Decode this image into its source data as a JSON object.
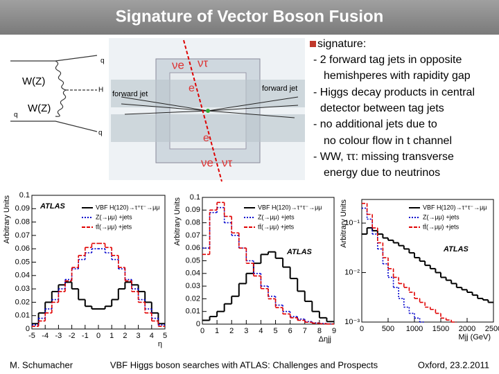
{
  "header": {
    "title": "Signature of Vector Boson Fusion"
  },
  "diagram": {
    "labels": [
      "q",
      "W(Z)",
      "H",
      "W(Z)",
      "q",
      "q"
    ]
  },
  "detector": {
    "labels": [
      "νe",
      "ντ",
      "e",
      "forward jet",
      "forward jet",
      "e",
      "νe",
      "ντ"
    ]
  },
  "text": {
    "heading": "signature:",
    "lines": [
      "- 2 forward tag jets in opposite",
      "hemishperes with rapidity gap",
      "- Higgs decay products in central",
      "detector between tag jets",
      "-  no additional jets due to",
      "no colour flow in t channel",
      "- WW, ττ: missing transverse",
      "energy due to neutrinos"
    ]
  },
  "chart_data": [
    {
      "type": "histogram",
      "annotation": "ATLAS",
      "x_label": "η",
      "y_label": "Arbitrary Units",
      "bins": [
        -5,
        -4.5,
        -4,
        -3.5,
        -3,
        -2.5,
        -2,
        -1.5,
        -1,
        -0.5,
        0,
        0.5,
        1,
        1.5,
        2,
        2.5,
        3,
        3.5,
        4,
        4.5,
        5
      ],
      "xlim": [
        -5,
        5
      ],
      "xticks": [
        -5,
        -4,
        -3,
        -2,
        -1,
        0,
        1,
        2,
        3,
        4,
        5
      ],
      "ylim": [
        0,
        0.1
      ],
      "yticks": [
        0,
        0.01,
        0.02,
        0.03,
        0.04,
        0.05,
        0.06,
        0.07,
        0.08,
        0.09,
        0.1
      ],
      "series": [
        {
          "name": "VBF H(120)→τ⁺τ⁻→μμ",
          "color": "#000000",
          "style": "solid",
          "values": [
            0.004,
            0.012,
            0.02,
            0.028,
            0.033,
            0.035,
            0.03,
            0.022,
            0.017,
            0.015,
            0.015,
            0.017,
            0.022,
            0.03,
            0.035,
            0.033,
            0.028,
            0.02,
            0.012,
            0.004
          ]
        },
        {
          "name": "Z(→μμ) +jets",
          "color": "#0000cc",
          "style": "dotted",
          "values": [
            0.003,
            0.008,
            0.015,
            0.022,
            0.03,
            0.037,
            0.045,
            0.052,
            0.057,
            0.06,
            0.06,
            0.057,
            0.052,
            0.045,
            0.037,
            0.03,
            0.022,
            0.015,
            0.008,
            0.003
          ]
        },
        {
          "name": "tt̄(→μμ) +jets",
          "color": "#e00000",
          "style": "dashed",
          "values": [
            0.002,
            0.006,
            0.012,
            0.02,
            0.028,
            0.036,
            0.046,
            0.055,
            0.061,
            0.064,
            0.064,
            0.061,
            0.055,
            0.046,
            0.036,
            0.028,
            0.02,
            0.012,
            0.006,
            0.002
          ]
        }
      ]
    },
    {
      "type": "histogram",
      "annotation": "ATLAS",
      "x_label": "Δηjj",
      "y_label": "Arbitrary Units",
      "bins": [
        0,
        0.5,
        1,
        1.5,
        2,
        2.5,
        3,
        3.5,
        4,
        4.5,
        5,
        5.5,
        6,
        6.5,
        7,
        7.5,
        8,
        8.5,
        9
      ],
      "xlim": [
        0,
        9
      ],
      "xticks": [
        0,
        1,
        2,
        3,
        4,
        5,
        6,
        7,
        8,
        9
      ],
      "ylim": [
        0,
        0.1
      ],
      "yticks": [
        0,
        0.01,
        0.02,
        0.03,
        0.04,
        0.05,
        0.06,
        0.07,
        0.08,
        0.09,
        0.1
      ],
      "series": [
        {
          "name": "VBF H(120)→τ⁺τ⁻→μμ",
          "color": "#000000",
          "style": "solid",
          "values": [
            0.003,
            0.006,
            0.01,
            0.016,
            0.022,
            0.032,
            0.04,
            0.048,
            0.055,
            0.057,
            0.052,
            0.045,
            0.036,
            0.026,
            0.018,
            0.01,
            0.005,
            0.002
          ]
        },
        {
          "name": "Z(→μμ) +jets",
          "color": "#0000cc",
          "style": "dotted",
          "values": [
            0.06,
            0.088,
            0.092,
            0.08,
            0.07,
            0.06,
            0.05,
            0.04,
            0.03,
            0.022,
            0.015,
            0.01,
            0.006,
            0.004,
            0.002,
            0.001,
            0.0005,
            0.0002
          ]
        },
        {
          "name": "tt̄(→μμ) +jets",
          "color": "#e00000",
          "style": "dashed",
          "values": [
            0.055,
            0.09,
            0.096,
            0.085,
            0.072,
            0.06,
            0.048,
            0.038,
            0.028,
            0.02,
            0.013,
            0.008,
            0.005,
            0.003,
            0.0015,
            0.0008,
            0.0003,
            0.0001
          ]
        }
      ]
    },
    {
      "type": "histogram",
      "annotation": "ATLAS",
      "x_label": "Mjj (GeV)",
      "y_label": "Arbitrary Units",
      "log": true,
      "bins": [
        0,
        100,
        200,
        300,
        400,
        500,
        600,
        700,
        800,
        900,
        1000,
        1100,
        1200,
        1300,
        1400,
        1500,
        1600,
        1700,
        1800,
        1900,
        2000,
        2100,
        2200,
        2300,
        2400,
        2500
      ],
      "xlim": [
        0,
        2500
      ],
      "xticks": [
        0,
        500,
        1000,
        1500,
        2000,
        2500
      ],
      "ylim": [
        0.001,
        0.3
      ],
      "yticks": [
        {
          "value": 0.001,
          "label": "10⁻³"
        },
        {
          "value": 0.01,
          "label": "10⁻²"
        },
        {
          "value": 0.1,
          "label": "10⁻¹"
        }
      ],
      "series": [
        {
          "name": "VBF H(120)→τ⁺τ⁻→μμ",
          "color": "#000000",
          "style": "solid",
          "values": [
            0.06,
            0.08,
            0.07,
            0.06,
            0.05,
            0.045,
            0.04,
            0.035,
            0.03,
            0.025,
            0.02,
            0.017,
            0.014,
            0.012,
            0.01,
            0.008,
            0.007,
            0.006,
            0.005,
            0.0045,
            0.004,
            0.0035,
            0.003,
            0.0028,
            0.0025
          ]
        },
        {
          "name": "Z(→μμ) +jets",
          "color": "#0000cc",
          "style": "dotted",
          "values": [
            0.2,
            0.12,
            0.06,
            0.03,
            0.015,
            0.008,
            0.005,
            0.003,
            0.002,
            0.0015,
            0.0012,
            0.001,
            null,
            null,
            null,
            null,
            null,
            null,
            null,
            null,
            null,
            null,
            null,
            null,
            null
          ]
        },
        {
          "name": "tt̄(→μμ) +jets",
          "color": "#e00000",
          "style": "dashed",
          "values": [
            0.25,
            0.15,
            0.08,
            0.04,
            0.02,
            0.012,
            0.008,
            0.006,
            0.005,
            0.004,
            0.003,
            0.0025,
            0.002,
            0.0018,
            0.0015,
            0.0012,
            0.0011,
            0.001,
            null,
            null,
            null,
            null,
            null,
            null,
            null
          ]
        }
      ]
    }
  ],
  "footer": {
    "left": "M. Schumacher",
    "center": "VBF Higgs boson searches with ATLAS: Challenges and Prospects",
    "right": "Oxford, 23.2.2011"
  }
}
